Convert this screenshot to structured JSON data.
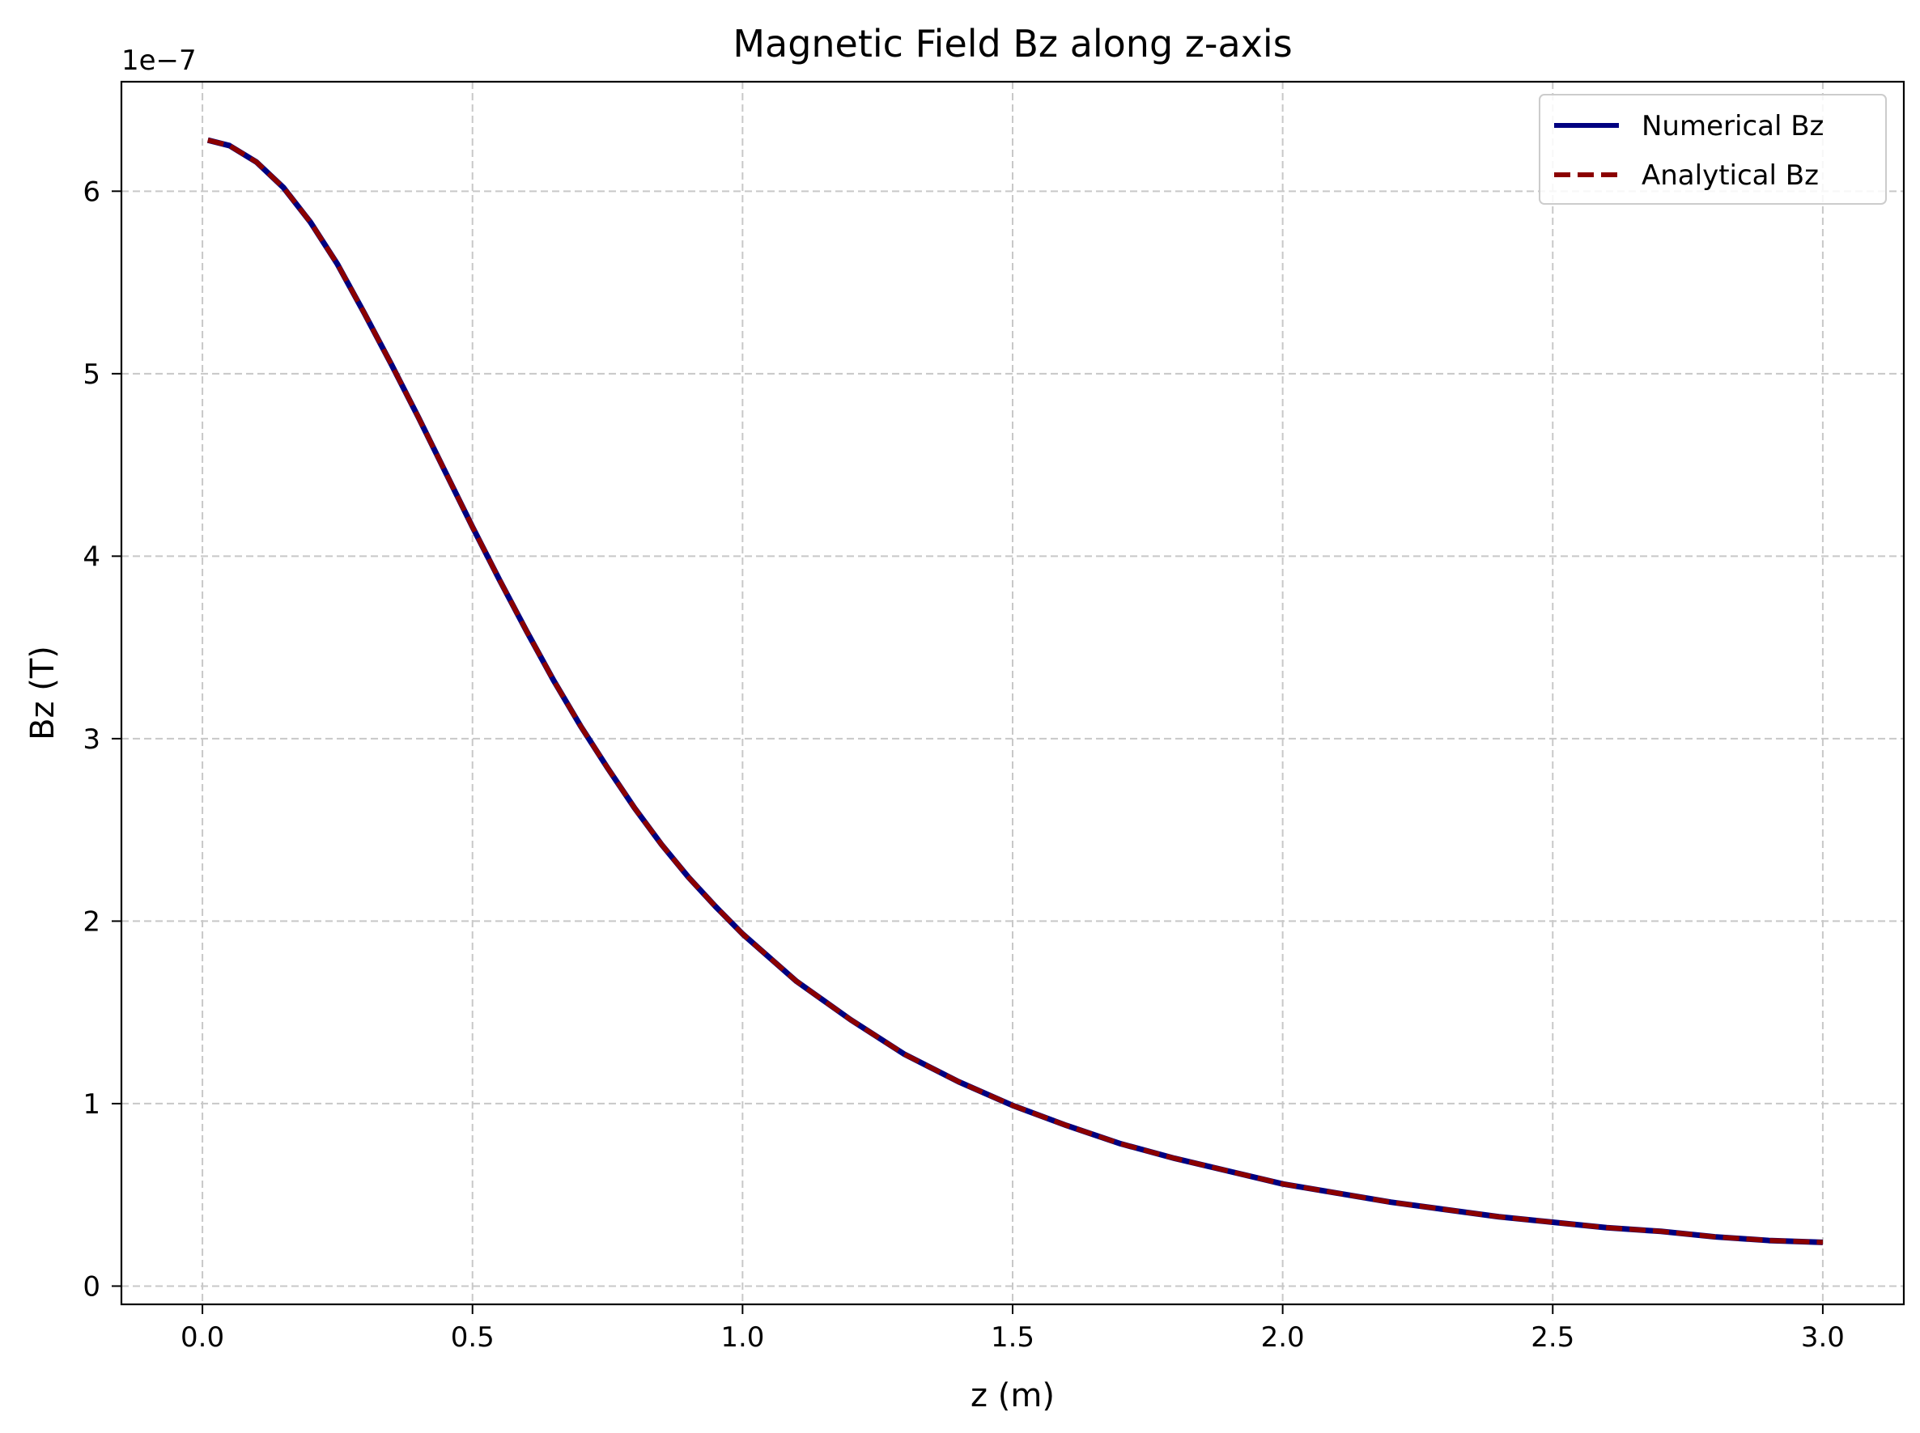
{
  "chart_data": {
    "type": "line",
    "title": "Magnetic Field Bz along z-axis",
    "xlabel": "z (m)",
    "ylabel": "Bz (T)",
    "y_offset_label": "1e−7",
    "xlim": [
      -0.15,
      3.15
    ],
    "ylim": [
      -0.1,
      6.6
    ],
    "y_scale_factor": 1e-07,
    "xticks": [
      0.0,
      0.5,
      1.0,
      1.5,
      2.0,
      2.5,
      3.0
    ],
    "xtick_labels": [
      "0.0",
      "0.5",
      "1.0",
      "1.5",
      "2.0",
      "2.5",
      "3.0"
    ],
    "yticks": [
      0,
      1,
      2,
      3,
      4,
      5,
      6
    ],
    "ytick_labels": [
      "0",
      "1",
      "2",
      "3",
      "4",
      "5",
      "6"
    ],
    "grid": true,
    "legend_position": "top-right",
    "x": [
      0.0,
      0.05,
      0.1,
      0.15,
      0.2,
      0.25,
      0.3,
      0.35,
      0.4,
      0.45,
      0.5,
      0.55,
      0.6,
      0.65,
      0.7,
      0.75,
      0.8,
      0.85,
      0.9,
      0.95,
      1.0,
      1.1,
      1.2,
      1.3,
      1.4,
      1.5,
      1.6,
      1.7,
      1.8,
      1.9,
      2.0,
      2.1,
      2.2,
      2.3,
      2.4,
      2.5,
      2.6,
      2.7,
      2.8,
      2.9,
      3.0
    ],
    "series": [
      {
        "name": "Numerical Bz",
        "color": "#000080",
        "style": "solid",
        "values": [
          6.28,
          6.25,
          6.16,
          6.02,
          5.83,
          5.6,
          5.33,
          5.05,
          4.76,
          4.46,
          4.16,
          3.87,
          3.59,
          3.32,
          3.07,
          2.84,
          2.62,
          2.42,
          2.24,
          2.08,
          1.93,
          1.67,
          1.46,
          1.27,
          1.12,
          0.99,
          0.88,
          0.78,
          0.7,
          0.63,
          0.56,
          0.51,
          0.46,
          0.42,
          0.38,
          0.35,
          0.32,
          0.3,
          0.27,
          0.25,
          0.24
        ]
      },
      {
        "name": "Analytical Bz",
        "color": "#8b0000",
        "style": "dashed",
        "values": [
          6.28,
          6.25,
          6.16,
          6.02,
          5.83,
          5.6,
          5.33,
          5.05,
          4.76,
          4.46,
          4.16,
          3.87,
          3.59,
          3.32,
          3.07,
          2.84,
          2.62,
          2.42,
          2.24,
          2.08,
          1.93,
          1.67,
          1.46,
          1.27,
          1.12,
          0.99,
          0.88,
          0.78,
          0.7,
          0.63,
          0.56,
          0.51,
          0.46,
          0.42,
          0.38,
          0.35,
          0.32,
          0.3,
          0.27,
          0.25,
          0.24
        ]
      }
    ]
  }
}
